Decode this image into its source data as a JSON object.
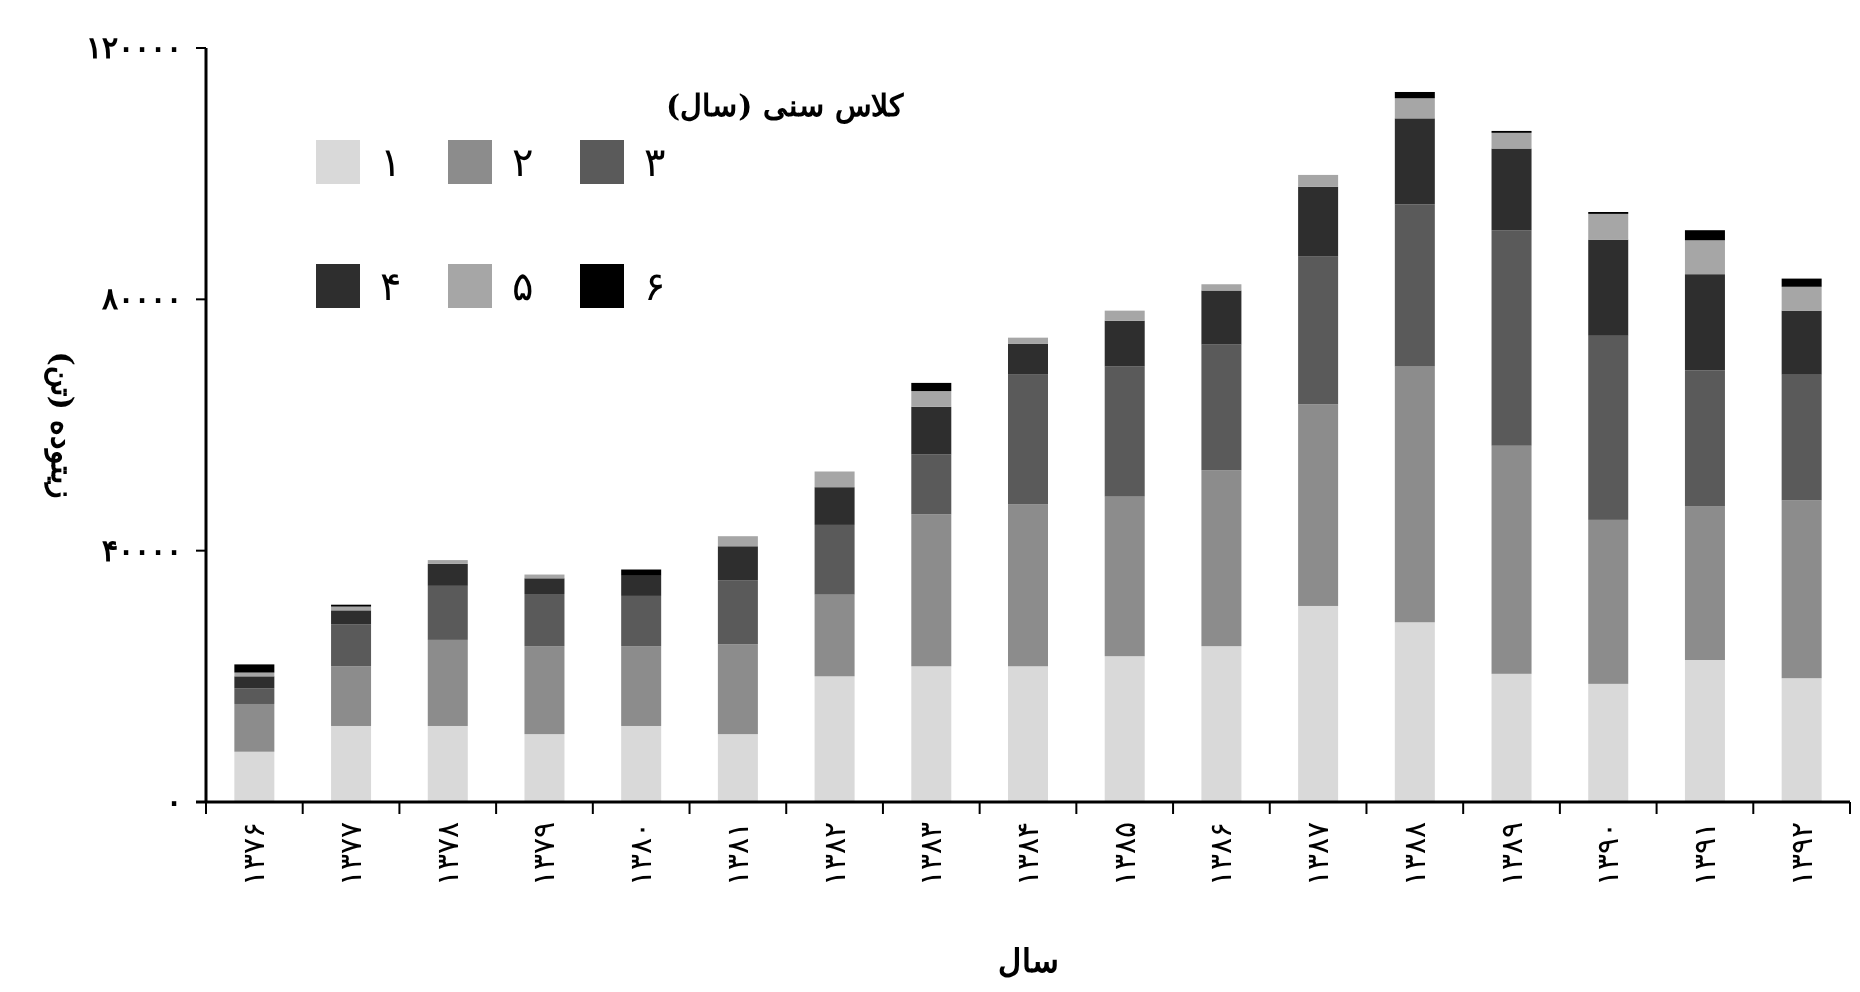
{
  "chart_data": {
    "type": "bar",
    "stacked": true,
    "xlabel": "سال",
    "ylabel": "زیتوده (تن)",
    "legend_title": "کلاس سنی (سال)",
    "legend": "top left",
    "grid": false,
    "categories": [
      "۱۳۷۶",
      "۱۳۷۷",
      "۱۳۷۸",
      "۱۳۷۹",
      "۱۳۸۰",
      "۱۳۸۱",
      "۱۳۸۲",
      "۱۳۸۳",
      "۱۳۸۴",
      "۱۳۸۵",
      "۱۳۸۶",
      "۱۳۸۷",
      "۱۳۸۸",
      "۱۳۸۹",
      "۱۳۹۰",
      "۱۳۹۱",
      "۱۳۹۲"
    ],
    "ylim": [
      0,
      120000
    ],
    "yticks": [
      {
        "value": 0,
        "label": "۰"
      },
      {
        "value": 40000,
        "label": "۴۰۰۰۰"
      },
      {
        "value": 80000,
        "label": "۸۰۰۰۰"
      },
      {
        "value": 120000,
        "label": "۱۲۰۰۰۰"
      }
    ],
    "series": [
      {
        "name": "۱",
        "color": "#d9d9d9",
        "values": [
          8000,
          12100,
          12100,
          10800,
          12100,
          10800,
          20000,
          21600,
          21600,
          23200,
          24800,
          31200,
          28600,
          20400,
          18800,
          22600,
          19700
        ]
      },
      {
        "name": "۲",
        "color": "#8c8c8c",
        "values": [
          7600,
          9500,
          13700,
          14000,
          12700,
          14300,
          13000,
          24200,
          25800,
          25400,
          28000,
          32100,
          40700,
          36300,
          26100,
          24500,
          28300
        ]
      },
      {
        "name": "۳",
        "color": "#5a5a5a",
        "values": [
          2500,
          6700,
          8600,
          8300,
          8000,
          10200,
          11100,
          9500,
          20700,
          20700,
          20000,
          23500,
          25800,
          34300,
          29300,
          21600,
          20000
        ]
      },
      {
        "name": "۴",
        "color": "#2e2e2e",
        "values": [
          1900,
          2200,
          3500,
          2500,
          3200,
          5400,
          6000,
          7600,
          4800,
          7300,
          8600,
          11100,
          13700,
          13000,
          15300,
          15300,
          10200
        ]
      },
      {
        "name": "۵",
        "color": "#a6a6a6",
        "values": [
          600,
          600,
          600,
          600,
          null,
          1600,
          2500,
          2500,
          1000,
          1600,
          1000,
          1900,
          3200,
          2500,
          4100,
          5400,
          3800
        ]
      },
      {
        "name": "۶",
        "color": "#000000",
        "values": [
          1300,
          300,
          0,
          0,
          1000,
          0,
          0,
          1300,
          0,
          0,
          0,
          0,
          1000,
          300,
          300,
          1600,
          1300
        ]
      }
    ]
  }
}
